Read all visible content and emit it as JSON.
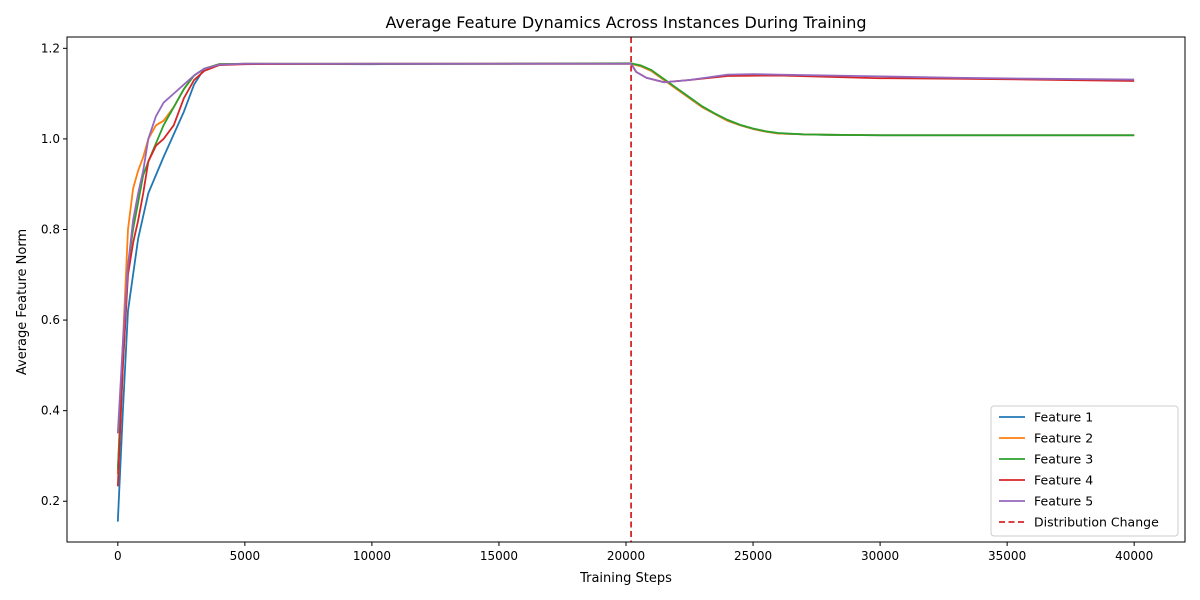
{
  "chart_data": {
    "type": "line",
    "title": "Average Feature Dynamics Across Instances During Training",
    "xlabel": "Training Steps",
    "ylabel": "Average Feature Norm",
    "xlim": [
      -2000,
      42000
    ],
    "ylim": [
      0.11,
      1.225
    ],
    "xticks": [
      0,
      5000,
      10000,
      15000,
      20000,
      25000,
      30000,
      35000,
      40000
    ],
    "yticks": [
      0.2,
      0.4,
      0.6,
      0.8,
      1.0,
      1.2
    ],
    "xtick_labels": [
      "0",
      "5000",
      "10000",
      "15000",
      "20000",
      "25000",
      "30000",
      "35000",
      "40000"
    ],
    "ytick_labels": [
      "0.2",
      "0.4",
      "0.6",
      "0.8",
      "1.0",
      "1.2"
    ],
    "grid": false,
    "legend_position": "lower-right",
    "vline": {
      "x": 20200,
      "label": "Distribution Change",
      "color": "#d62728",
      "style": "dashed"
    },
    "series": [
      {
        "name": "Feature 1",
        "color": "#1f77b4",
        "points": [
          [
            0,
            0.155
          ],
          [
            200,
            0.4
          ],
          [
            400,
            0.62
          ],
          [
            600,
            0.7
          ],
          [
            800,
            0.78
          ],
          [
            1000,
            0.83
          ],
          [
            1200,
            0.88
          ],
          [
            1500,
            0.92
          ],
          [
            1800,
            0.96
          ],
          [
            2200,
            1.01
          ],
          [
            2600,
            1.06
          ],
          [
            3000,
            1.12
          ],
          [
            3400,
            1.155
          ],
          [
            4000,
            1.165
          ],
          [
            5000,
            1.166
          ],
          [
            10000,
            1.165
          ],
          [
            15000,
            1.166
          ],
          [
            20200,
            1.166
          ],
          [
            20600,
            1.16
          ],
          [
            21000,
            1.15
          ],
          [
            21500,
            1.13
          ],
          [
            22000,
            1.11
          ],
          [
            22500,
            1.09
          ],
          [
            23000,
            1.07
          ],
          [
            23500,
            1.055
          ],
          [
            24000,
            1.04
          ],
          [
            24500,
            1.03
          ],
          [
            25000,
            1.022
          ],
          [
            25500,
            1.016
          ],
          [
            26000,
            1.012
          ],
          [
            27000,
            1.01
          ],
          [
            28000,
            1.009
          ],
          [
            30000,
            1.008
          ],
          [
            35000,
            1.008
          ],
          [
            40000,
            1.008
          ]
        ]
      },
      {
        "name": "Feature 2",
        "color": "#ff7f0e",
        "points": [
          [
            0,
            0.26
          ],
          [
            200,
            0.55
          ],
          [
            400,
            0.8
          ],
          [
            600,
            0.89
          ],
          [
            800,
            0.93
          ],
          [
            1000,
            0.96
          ],
          [
            1200,
            1.0
          ],
          [
            1500,
            1.03
          ],
          [
            1800,
            1.04
          ],
          [
            2200,
            1.07
          ],
          [
            2600,
            1.11
          ],
          [
            3000,
            1.14
          ],
          [
            3400,
            1.155
          ],
          [
            4000,
            1.165
          ],
          [
            5000,
            1.166
          ],
          [
            10000,
            1.166
          ],
          [
            15000,
            1.166
          ],
          [
            20200,
            1.166
          ],
          [
            20600,
            1.16
          ],
          [
            21000,
            1.15
          ],
          [
            21500,
            1.13
          ],
          [
            22000,
            1.11
          ],
          [
            22500,
            1.09
          ],
          [
            23000,
            1.07
          ],
          [
            23500,
            1.055
          ],
          [
            24000,
            1.04
          ],
          [
            24500,
            1.03
          ],
          [
            25000,
            1.022
          ],
          [
            25500,
            1.016
          ],
          [
            26000,
            1.012
          ],
          [
            27000,
            1.01
          ],
          [
            28000,
            1.009
          ],
          [
            30000,
            1.008
          ],
          [
            35000,
            1.008
          ],
          [
            40000,
            1.008
          ]
        ]
      },
      {
        "name": "Feature 3",
        "color": "#2ca02c",
        "points": [
          [
            0,
            0.27
          ],
          [
            200,
            0.5
          ],
          [
            400,
            0.72
          ],
          [
            600,
            0.8
          ],
          [
            800,
            0.86
          ],
          [
            1000,
            0.92
          ],
          [
            1200,
            0.95
          ],
          [
            1500,
            0.99
          ],
          [
            1800,
            1.03
          ],
          [
            2200,
            1.07
          ],
          [
            2600,
            1.11
          ],
          [
            3000,
            1.14
          ],
          [
            3400,
            1.155
          ],
          [
            4000,
            1.165
          ],
          [
            5000,
            1.166
          ],
          [
            10000,
            1.166
          ],
          [
            15000,
            1.166
          ],
          [
            20200,
            1.167
          ],
          [
            20600,
            1.162
          ],
          [
            21000,
            1.152
          ],
          [
            21500,
            1.132
          ],
          [
            22000,
            1.112
          ],
          [
            22500,
            1.092
          ],
          [
            23000,
            1.072
          ],
          [
            23500,
            1.056
          ],
          [
            24000,
            1.042
          ],
          [
            24500,
            1.031
          ],
          [
            25000,
            1.023
          ],
          [
            25500,
            1.017
          ],
          [
            26000,
            1.013
          ],
          [
            27000,
            1.01
          ],
          [
            28000,
            1.009
          ],
          [
            30000,
            1.008
          ],
          [
            35000,
            1.008
          ],
          [
            40000,
            1.008
          ]
        ]
      },
      {
        "name": "Feature 4",
        "color": "#d62728",
        "points": [
          [
            0,
            0.233
          ],
          [
            200,
            0.5
          ],
          [
            400,
            0.7
          ],
          [
            600,
            0.77
          ],
          [
            800,
            0.82
          ],
          [
            1000,
            0.88
          ],
          [
            1200,
            0.95
          ],
          [
            1500,
            0.985
          ],
          [
            1800,
            1.0
          ],
          [
            2200,
            1.03
          ],
          [
            2600,
            1.09
          ],
          [
            3000,
            1.13
          ],
          [
            3400,
            1.15
          ],
          [
            4000,
            1.163
          ],
          [
            5000,
            1.165
          ],
          [
            10000,
            1.166
          ],
          [
            15000,
            1.166
          ],
          [
            20200,
            1.166
          ],
          [
            20400,
            1.148
          ],
          [
            20800,
            1.135
          ],
          [
            21500,
            1.125
          ],
          [
            22500,
            1.13
          ],
          [
            24000,
            1.139
          ],
          [
            26000,
            1.14
          ],
          [
            28000,
            1.137
          ],
          [
            30000,
            1.134
          ],
          [
            33000,
            1.133
          ],
          [
            36000,
            1.131
          ],
          [
            40000,
            1.128
          ]
        ]
      },
      {
        "name": "Feature 5",
        "color": "#9467bd",
        "points": [
          [
            0,
            0.35
          ],
          [
            200,
            0.55
          ],
          [
            400,
            0.72
          ],
          [
            600,
            0.82
          ],
          [
            800,
            0.88
          ],
          [
            1000,
            0.93
          ],
          [
            1200,
            1.0
          ],
          [
            1500,
            1.05
          ],
          [
            1800,
            1.08
          ],
          [
            2200,
            1.1
          ],
          [
            2600,
            1.12
          ],
          [
            3000,
            1.14
          ],
          [
            3400,
            1.155
          ],
          [
            4000,
            1.164
          ],
          [
            5000,
            1.166
          ],
          [
            10000,
            1.166
          ],
          [
            15000,
            1.166
          ],
          [
            20200,
            1.166
          ],
          [
            20400,
            1.148
          ],
          [
            20800,
            1.135
          ],
          [
            21500,
            1.125
          ],
          [
            22500,
            1.13
          ],
          [
            24000,
            1.142
          ],
          [
            25000,
            1.143
          ],
          [
            26000,
            1.142
          ],
          [
            28000,
            1.14
          ],
          [
            30000,
            1.138
          ],
          [
            33000,
            1.135
          ],
          [
            36000,
            1.133
          ],
          [
            40000,
            1.131
          ]
        ]
      }
    ]
  }
}
